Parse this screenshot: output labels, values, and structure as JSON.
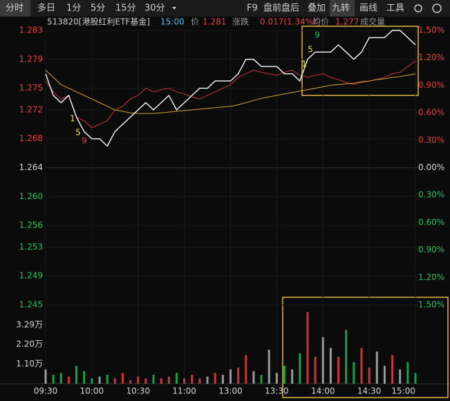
{
  "chart_data": {
    "type": "line",
    "toolbar": {
      "left": [
        "分时",
        "多日",
        "1分",
        "5分",
        "15分",
        "30分"
      ],
      "right": [
        "F9",
        "盘前盘后",
        "叠加",
        "九转",
        "画线",
        "工具"
      ]
    },
    "info": {
      "code": "513820[港股红利ETF基金]",
      "time": "15:00",
      "price_label": "价",
      "price": "1.281",
      "change_label": "涨跌",
      "change": "0.017(1.34%)",
      "avg_label": "均价",
      "avg": "1.277",
      "volume_label": "成交量"
    },
    "x": [
      0,
      5,
      10,
      15,
      20,
      25,
      30,
      35,
      40,
      45,
      50,
      55,
      60,
      65,
      70,
      75,
      80,
      85,
      90,
      95,
      100,
      105,
      110,
      115,
      120,
      125,
      130,
      135,
      140,
      145,
      150,
      155,
      160,
      165,
      170,
      175,
      180,
      185,
      190,
      195,
      200,
      205,
      210,
      215,
      220,
      225,
      230,
      235,
      240
    ],
    "xlim": [
      0,
      240
    ],
    "xticks": [
      {
        "value": 0,
        "label": "09:30"
      },
      {
        "value": 30,
        "label": "10:00"
      },
      {
        "value": 60,
        "label": "10:30"
      },
      {
        "value": 90,
        "label": "11:00"
      },
      {
        "value": 120,
        "label": "13:00"
      },
      {
        "value": 150,
        "label": "13:30"
      },
      {
        "value": 180,
        "label": "14:00"
      },
      {
        "value": 210,
        "label": "14:30"
      },
      {
        "value": 240,
        "label": "15:00"
      }
    ],
    "ylim": [
      1.245,
      1.283
    ],
    "yticks": [
      1.283,
      1.279,
      1.275,
      1.272,
      1.268,
      1.264,
      {
        "value": 1.26,
        "label": "1.260"
      },
      1.256,
      1.253,
      1.249,
      1.245
    ],
    "y2lim": [
      -1.5,
      1.5
    ],
    "y2ticks": [
      {
        "value": 1.5,
        "label": "1.50%"
      },
      {
        "value": 1.2,
        "label": "1.20%"
      },
      {
        "value": 0.9,
        "label": "0.90%"
      },
      {
        "value": 0.6,
        "label": "0.60%"
      },
      {
        "value": 0.3,
        "label": "0.30%"
      },
      {
        "value": 0,
        "label": "0.00%"
      },
      {
        "value": -0.3,
        "label": "0.30%"
      },
      {
        "value": -0.6,
        "label": "0.60%"
      },
      {
        "value": -0.9,
        "label": "0.90%"
      },
      {
        "value": -1.2,
        "label": "1.20%"
      },
      {
        "value": -1.5,
        "label": "1.50%"
      }
    ],
    "grid": true,
    "series": [
      {
        "color": "#ffffff",
        "values": [
          1.277,
          1.274,
          1.273,
          1.274,
          1.271,
          1.269,
          1.268,
          1.268,
          1.267,
          1.269,
          1.27,
          1.271,
          1.272,
          1.273,
          1.272,
          1.273,
          1.274,
          1.272,
          1.273,
          1.274,
          1.275,
          1.275,
          1.276,
          1.276,
          1.276,
          1.277,
          1.279,
          1.279,
          1.278,
          1.278,
          1.278,
          1.277,
          1.277,
          1.276,
          1.279,
          1.28,
          1.28,
          1.28,
          1.281,
          1.28,
          1.279,
          1.28,
          1.282,
          1.282,
          1.282,
          1.283,
          1.283,
          1.282,
          1.281
        ]
      },
      {
        "color": "#d9a43a",
        "values": [
          1.2775,
          1.2765,
          1.2755,
          1.275,
          1.2745,
          1.274,
          1.2735,
          1.273,
          1.2725,
          1.272,
          1.2718,
          1.2716,
          1.2715,
          1.2715,
          1.2715,
          1.2716,
          1.2717,
          1.2718,
          1.2719,
          1.272,
          1.2721,
          1.2722,
          1.2723,
          1.2724,
          1.2725,
          1.2727,
          1.273,
          1.2733,
          1.2736,
          1.2738,
          1.274,
          1.2742,
          1.2744,
          1.2746,
          1.2748,
          1.275,
          1.2752,
          1.2754,
          1.2755,
          1.2756,
          1.2757,
          1.2759,
          1.276,
          1.2762,
          1.2763,
          1.2765,
          1.2766,
          1.2768,
          1.277
        ]
      },
      {
        "color": "#c8383a",
        "values": [
          1.276,
          1.2745,
          1.2735,
          1.274,
          1.271,
          1.2705,
          1.2695,
          1.27,
          1.2705,
          1.272,
          1.2725,
          1.2735,
          1.274,
          1.275,
          1.2745,
          1.2748,
          1.275,
          1.2745,
          1.2742,
          1.2738,
          1.2735,
          1.274,
          1.2745,
          1.275,
          1.2755,
          1.2765,
          1.277,
          1.2775,
          1.2772,
          1.277,
          1.2768,
          1.2772,
          1.2775,
          1.2768,
          1.2765,
          1.2768,
          1.277,
          1.2765,
          1.2762,
          1.2758,
          1.2755,
          1.2758,
          1.276,
          1.2762,
          1.2765,
          1.277,
          1.2772,
          1.278,
          1.2788
        ]
      }
    ],
    "volume": [
      0.8,
      0.5,
      0.6,
      0.4,
      1.0,
      0.7,
      0.3,
      0.4,
      0.5,
      0.3,
      0.6,
      0.2,
      0.4,
      0.3,
      0.5,
      0.3,
      0.4,
      0.6,
      0.3,
      0.5,
      0.3,
      0.4,
      0.6,
      0.5,
      0.8,
      0.9,
      1.6,
      0.7,
      0.5,
      1.9,
      0.6,
      1.0,
      0.8,
      1.7,
      4.0,
      1.5,
      2.6,
      2.0,
      1.5,
      3.0,
      1.2,
      2.0,
      0.9,
      1.8,
      1.0,
      1.6,
      0.8,
      1.2,
      0.6
    ],
    "volume_lim": [
      0,
      4.4
    ],
    "volume_ticks": [
      {
        "value": 3.29,
        "label": "3.29万"
      },
      {
        "value": 2.2,
        "label": "2.20万"
      },
      {
        "value": 1.1,
        "label": "1.10万"
      }
    ],
    "nine_turn": [
      "1",
      "5",
      "9",
      "1",
      "5",
      "9"
    ]
  }
}
